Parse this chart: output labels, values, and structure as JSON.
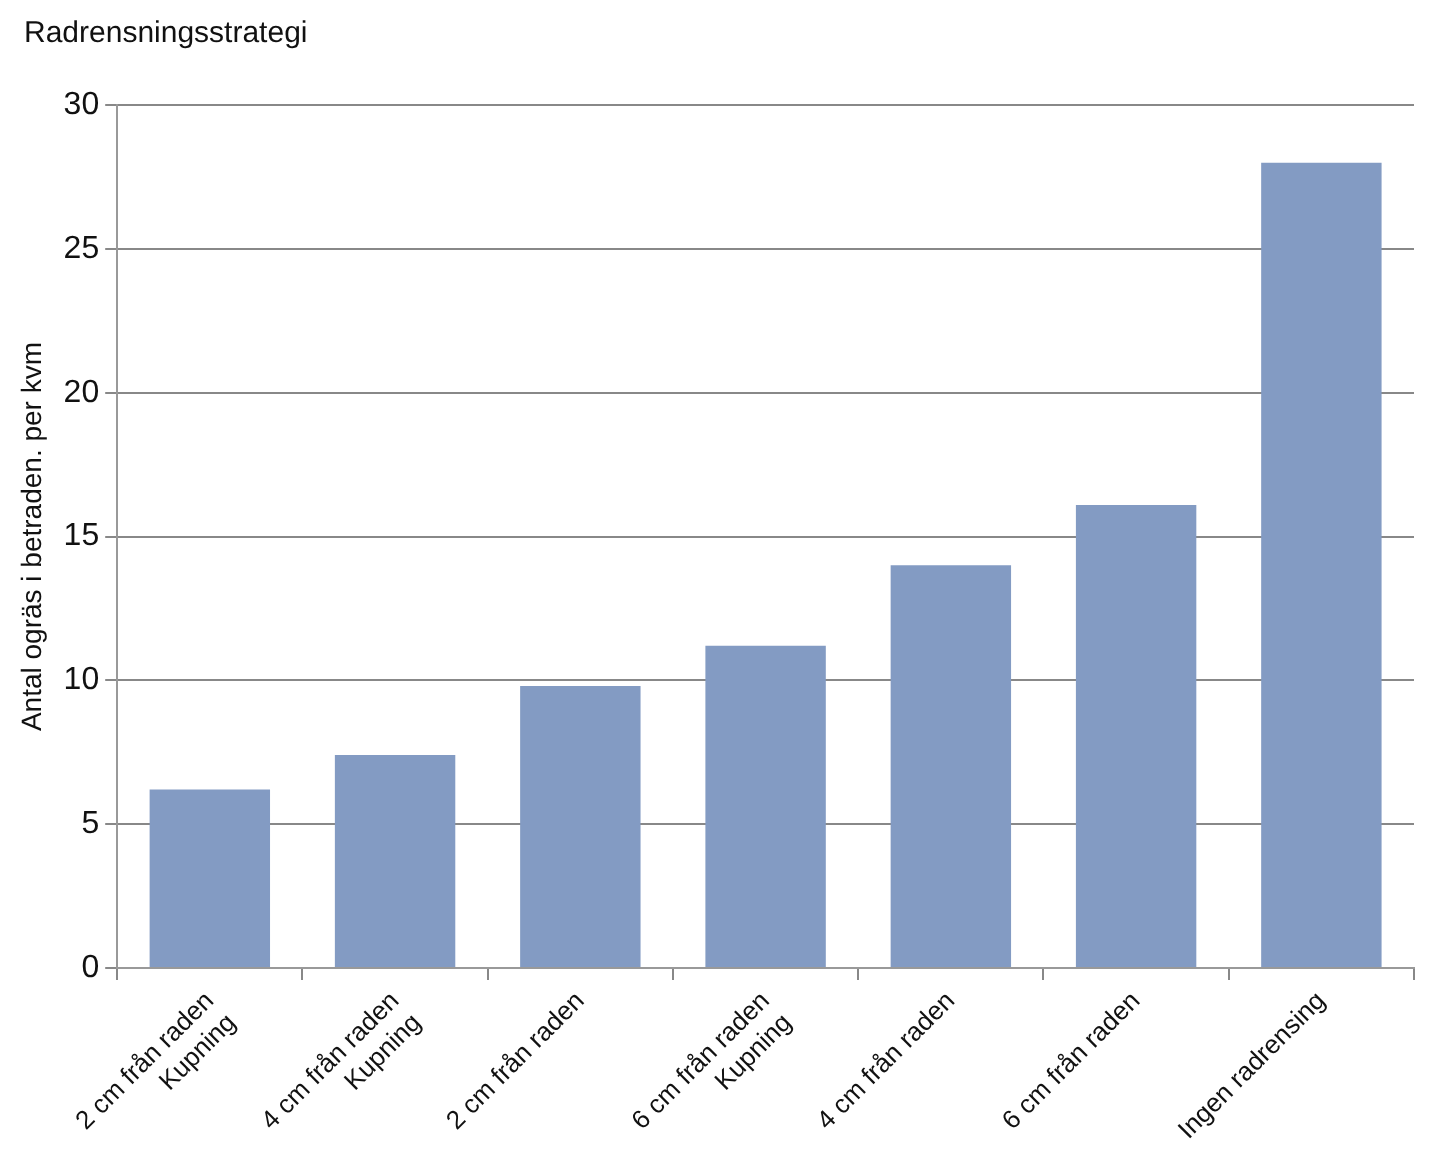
{
  "chart_data": {
    "type": "bar",
    "title": "Radrensningsstrategi",
    "ylabel": "Antal ogräs i betraden. per kvm",
    "categories": [
      "2 cm från raden\nKupning",
      "4 cm från raden\nKupning",
      "2 cm från raden",
      "6 cm från raden\nKupning",
      "4 cm från raden",
      "6 cm från raden",
      "Ingen radrensing"
    ],
    "values": [
      6.2,
      7.4,
      9.8,
      11.2,
      14.0,
      16.1,
      28.0
    ],
    "color": "#839bc3",
    "ylim": [
      0,
      30
    ],
    "yticks": [
      0,
      5,
      10,
      15,
      20,
      25,
      30
    ],
    "grid": "y",
    "legend": false
  }
}
